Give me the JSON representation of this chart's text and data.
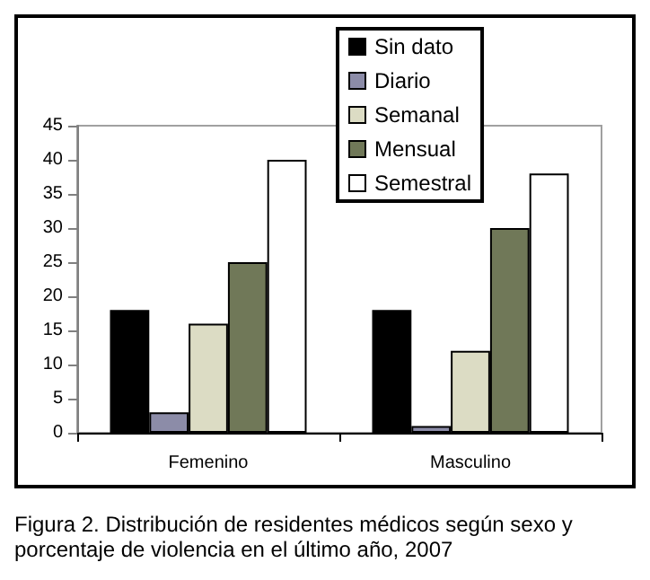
{
  "chart_data": {
    "type": "bar",
    "categories": [
      "Femenino",
      "Masculino"
    ],
    "series": [
      {
        "name": "Sin dato",
        "color": "#000000",
        "values": [
          18,
          18
        ]
      },
      {
        "name": "Diario",
        "color": "#8c8ca8",
        "values": [
          3,
          1
        ]
      },
      {
        "name": "Semanal",
        "color": "#dcdcc4",
        "values": [
          16,
          12
        ]
      },
      {
        "name": "Mensual",
        "color": "#707858",
        "values": [
          25,
          30
        ]
      },
      {
        "name": "Semestral",
        "color": "#ffffff",
        "values": [
          40,
          38
        ]
      }
    ],
    "ylim": [
      0,
      45
    ],
    "yticks": [
      0,
      5,
      10,
      15,
      20,
      25,
      30,
      35,
      40,
      45
    ],
    "grid": false,
    "legend": "top",
    "annotations": [
      "Figura 2. Distribución de residentes médicos según sexo y porcentaje de violencia en el último año, 2007"
    ]
  }
}
